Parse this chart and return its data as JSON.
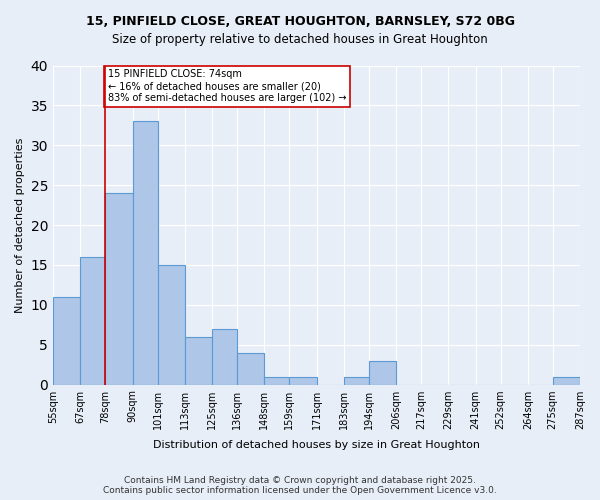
{
  "title1": "15, PINFIELD CLOSE, GREAT HOUGHTON, BARNSLEY, S72 0BG",
  "title2": "Size of property relative to detached houses in Great Houghton",
  "xlabel": "Distribution of detached houses by size in Great Houghton",
  "ylabel": "Number of detached properties",
  "bins": [
    55,
    67,
    78,
    90,
    101,
    113,
    125,
    136,
    148,
    159,
    171,
    183,
    194,
    206,
    217,
    229,
    241,
    252,
    264,
    275,
    287
  ],
  "bin_labels": [
    "55sqm",
    "67sqm",
    "78sqm",
    "90sqm",
    "101sqm",
    "113sqm",
    "125sqm",
    "136sqm",
    "148sqm",
    "159sqm",
    "171sqm",
    "183sqm",
    "194sqm",
    "206sqm",
    "217sqm",
    "229sqm",
    "241sqm",
    "252sqm",
    "264sqm",
    "275sqm",
    "287sqm"
  ],
  "values": [
    11,
    16,
    24,
    33,
    15,
    6,
    7,
    4,
    1,
    1,
    0,
    1,
    3,
    0,
    0,
    0,
    0,
    0,
    0,
    1
  ],
  "bar_color": "#aec6e8",
  "bar_edge_color": "#5b9bd5",
  "property_size": 74,
  "vline_x": 78,
  "vline_color": "#cc0000",
  "annotation_text": "15 PINFIELD CLOSE: 74sqm\n← 16% of detached houses are smaller (20)\n83% of semi-detached houses are larger (102) →",
  "annotation_box_color": "#ffffff",
  "annotation_box_edge": "#cc0000",
  "ylim": [
    0,
    40
  ],
  "yticks": [
    0,
    5,
    10,
    15,
    20,
    25,
    30,
    35,
    40
  ],
  "background_color": "#e8eef7",
  "grid_color": "#ffffff",
  "footer": "Contains HM Land Registry data © Crown copyright and database right 2025.\nContains public sector information licensed under the Open Government Licence v3.0."
}
